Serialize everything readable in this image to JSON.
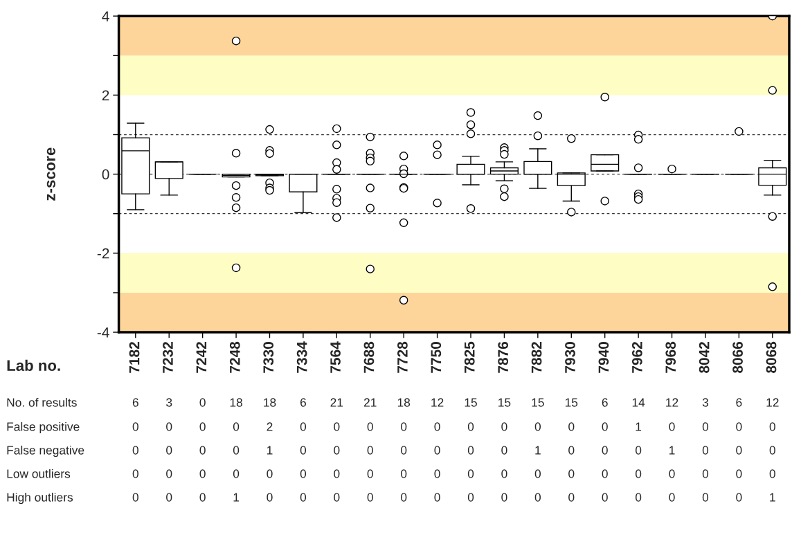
{
  "chart_data": {
    "type": "box",
    "ylabel": "z-score",
    "xlabel": "Lab no.",
    "categories": [
      "7182",
      "7232",
      "7242",
      "7248",
      "7330",
      "7334",
      "7564",
      "7688",
      "7728",
      "7750",
      "7825",
      "7876",
      "7882",
      "7930",
      "7940",
      "7962",
      "7968",
      "8042",
      "8066",
      "8068"
    ],
    "boxes": [
      {
        "low": -0.9,
        "q1": -0.5,
        "median": 0.59,
        "q3": 0.92,
        "high": 1.29
      },
      {
        "low": -0.53,
        "q1": -0.11,
        "median": 0.31,
        "q3": 0.31,
        "high": 0.31
      },
      {
        "low": 0,
        "q1": 0,
        "median": 0,
        "q3": 0,
        "high": 0
      },
      {
        "low": -0.07,
        "q1": -0.07,
        "median": -0.03,
        "q3": 0,
        "high": 0,
        "outliers": [
          3.37,
          0.53,
          -0.29,
          -0.59,
          -0.85,
          -2.37
        ]
      },
      {
        "low": -0.04,
        "q1": -0.04,
        "median": -0.02,
        "q3": 0,
        "high": 0,
        "outliers": [
          1.13,
          0.6,
          0.52,
          -0.22,
          -0.35,
          -0.41
        ]
      },
      {
        "low": -0.97,
        "q1": -0.45,
        "median": 0,
        "q3": 0,
        "high": 0
      },
      {
        "low": 0,
        "q1": 0,
        "median": 0,
        "q3": 0,
        "high": 0,
        "outliers": [
          1.15,
          0.74,
          0.29,
          0.12,
          -0.38,
          -0.61,
          -0.72,
          -1.1
        ]
      },
      {
        "low": 0,
        "q1": 0,
        "median": 0,
        "q3": 0,
        "high": 0,
        "outliers": [
          0.94,
          0.53,
          0.41,
          0.33,
          -0.35,
          -0.86,
          -2.4
        ]
      },
      {
        "low": 0,
        "q1": 0,
        "median": 0,
        "q3": 0,
        "high": 0,
        "outliers": [
          0.46,
          0.13,
          0.01,
          -0.34,
          -0.36,
          -1.23,
          -3.19
        ]
      },
      {
        "low": 0,
        "q1": 0,
        "median": 0,
        "q3": 0,
        "high": 0,
        "outliers": [
          0.74,
          0.49,
          -0.73
        ]
      },
      {
        "low": -0.27,
        "q1": 0,
        "median": 0,
        "q3": 0.25,
        "high": 0.45,
        "outliers": [
          1.56,
          1.25,
          1.02,
          -0.87
        ]
      },
      {
        "low": -0.17,
        "q1": 0,
        "median": 0.08,
        "q3": 0.16,
        "high": 0.31,
        "outliers": [
          0.67,
          0.6,
          0.5,
          -0.37,
          -0.57
        ]
      },
      {
        "low": -0.36,
        "q1": 0,
        "median": 0,
        "q3": 0.32,
        "high": 0.64,
        "outliers": [
          1.48,
          0.97
        ]
      },
      {
        "low": -0.68,
        "q1": -0.29,
        "median": 0,
        "q3": 0.03,
        "high": 0.03,
        "outliers": [
          0.9,
          -0.96
        ]
      },
      {
        "low": 0.08,
        "q1": 0.08,
        "median": 0.25,
        "q3": 0.49,
        "high": 0.49,
        "outliers": [
          1.95,
          -0.68
        ]
      },
      {
        "low": 0,
        "q1": 0,
        "median": 0,
        "q3": 0,
        "high": 0,
        "outliers": [
          0.99,
          0.88,
          0.16,
          -0.5,
          -0.57,
          -0.64
        ]
      },
      {
        "low": 0,
        "q1": 0,
        "median": 0,
        "q3": 0,
        "high": 0,
        "outliers": [
          0.13
        ]
      },
      {
        "low": 0,
        "q1": 0,
        "median": 0,
        "q3": 0,
        "high": 0
      },
      {
        "low": 0,
        "q1": 0,
        "median": 0,
        "q3": 0,
        "high": 0,
        "outliers": [
          1.08
        ]
      },
      {
        "low": -0.53,
        "q1": -0.28,
        "median": 0,
        "q3": 0.16,
        "high": 0.35,
        "outliers": [
          4.0,
          2.12,
          -1.07,
          -2.85
        ]
      }
    ],
    "ylim": [
      -4,
      4
    ],
    "yticks": [
      -4,
      {
        "value": -3,
        "label": null
      },
      -2,
      {
        "value": -1,
        "label": null
      },
      0,
      {
        "value": 1,
        "label": null
      },
      2,
      {
        "value": 3,
        "label": null
      },
      4
    ],
    "bands": [
      {
        "axis": "y",
        "from": -4,
        "to": -3,
        "color": "#fdd59a"
      },
      {
        "axis": "y",
        "from": -3,
        "to": -2,
        "color": "#fdfdc4"
      },
      {
        "axis": "y",
        "from": 2,
        "to": 3,
        "color": "#fdfdc4"
      },
      {
        "axis": "y",
        "from": 3,
        "to": 4,
        "color": "#fdd59a"
      }
    ],
    "ref_lines": [
      {
        "axis": "y",
        "value": 1,
        "line_style": "dashed"
      },
      {
        "axis": "y",
        "value": 0,
        "line_style": "dashed"
      },
      {
        "axis": "y",
        "value": -1,
        "line_style": "dashed"
      }
    ],
    "grid": false,
    "annotations": [
      "No. of results",
      "6",
      "3",
      "0",
      "18",
      "18",
      "6",
      "21",
      "21",
      "18",
      "12",
      "15",
      "15",
      "15",
      "15",
      "6",
      "14",
      "12",
      "3",
      "6",
      "12",
      "False positive",
      "0",
      "0",
      "0",
      "0",
      "2",
      "0",
      "0",
      "0",
      "0",
      "0",
      "0",
      "0",
      "0",
      "0",
      "0",
      "1",
      "0",
      "0",
      "0",
      "0",
      "False negative",
      "0",
      "0",
      "0",
      "0",
      "1",
      "0",
      "0",
      "0",
      "0",
      "0",
      "0",
      "0",
      "1",
      "0",
      "0",
      "0",
      "1",
      "0",
      "0",
      "0",
      "Low outliers",
      "0",
      "0",
      "0",
      "0",
      "0",
      "0",
      "0",
      "0",
      "0",
      "0",
      "0",
      "0",
      "0",
      "0",
      "0",
      "0",
      "0",
      "0",
      "0",
      "0",
      "High outliers",
      "0",
      "0",
      "0",
      "1",
      "0",
      "0",
      "0",
      "0",
      "0",
      "0",
      "0",
      "0",
      "0",
      "0",
      "0",
      "0",
      "0",
      "0",
      "0",
      "1"
    ]
  }
}
